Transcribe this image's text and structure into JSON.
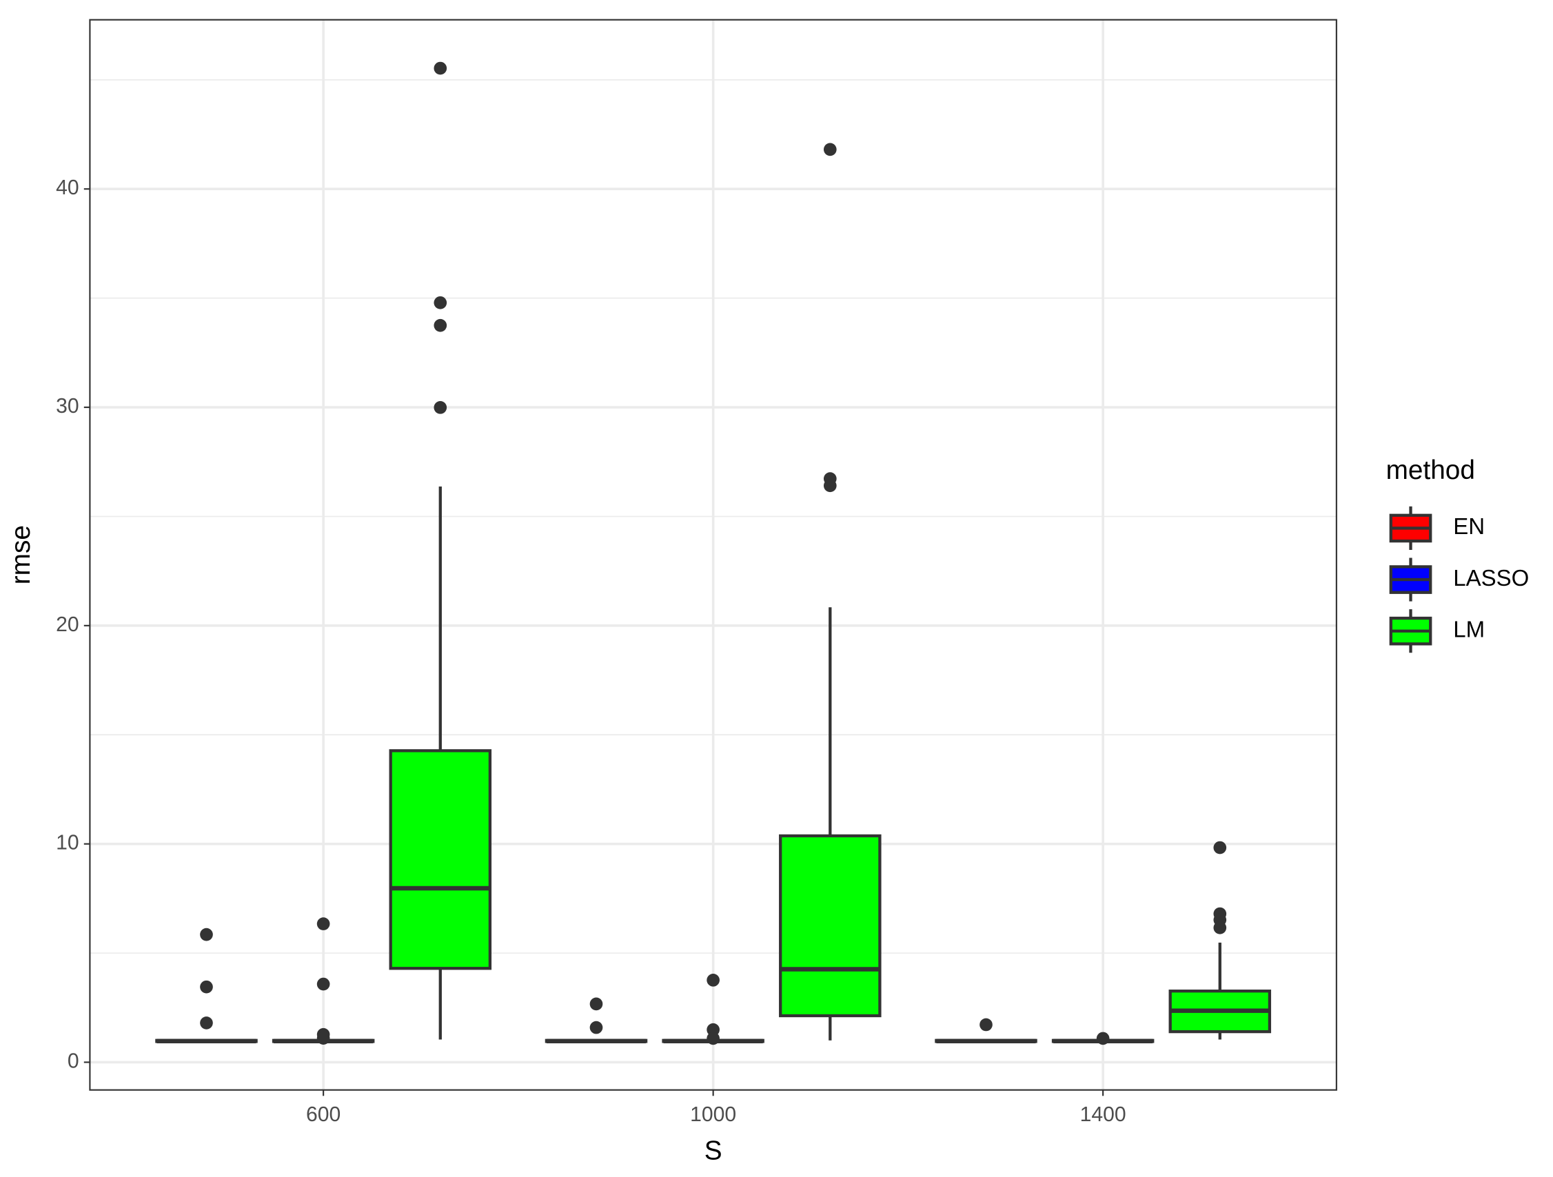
{
  "chart_data": {
    "type": "boxplot",
    "x_label": "S",
    "y_label": "rmse",
    "categories": [
      "600",
      "1000",
      "1400"
    ],
    "ylim": [
      -1.27,
      47.75
    ],
    "yticks": [
      0,
      10,
      20,
      30,
      40
    ],
    "grid": true,
    "minor_grid": true,
    "legend_title": "method",
    "legend": "right",
    "series": [
      {
        "name": "EN",
        "color": "#ff0000",
        "boxes": [
          {
            "low": 0.93,
            "q1": 0.95,
            "median": 0.97,
            "q3": 1.0,
            "high": 1.05,
            "outliers": [
              5.85,
              3.45,
              1.8
            ]
          },
          {
            "low": 0.93,
            "q1": 0.95,
            "median": 0.97,
            "q3": 1.0,
            "high": 1.05,
            "outliers": [
              2.67,
              1.59
            ]
          },
          {
            "low": 0.93,
            "q1": 0.95,
            "median": 0.97,
            "q3": 1.0,
            "high": 1.05,
            "outliers": [
              1.72
            ]
          }
        ]
      },
      {
        "name": "LASSO",
        "color": "#0000ff",
        "boxes": [
          {
            "low": 0.93,
            "q1": 0.95,
            "median": 0.97,
            "q3": 1.0,
            "high": 1.05,
            "outliers": [
              6.34,
              3.58,
              1.27,
              1.1
            ]
          },
          {
            "low": 0.93,
            "q1": 0.95,
            "median": 0.97,
            "q3": 1.0,
            "high": 1.05,
            "outliers": [
              3.76,
              1.49,
              1.09
            ]
          },
          {
            "low": 0.93,
            "q1": 0.95,
            "median": 0.97,
            "q3": 1.0,
            "high": 1.05,
            "outliers": [
              1.09
            ]
          }
        ]
      },
      {
        "name": "LM",
        "color": "#00ff00",
        "boxes": [
          {
            "low": 1.04,
            "q1": 4.3,
            "median": 7.97,
            "q3": 14.27,
            "high": 26.37,
            "outliers": [
              45.53,
              34.79,
              33.75,
              29.99
            ]
          },
          {
            "low": 1.0,
            "q1": 2.13,
            "median": 4.26,
            "q3": 10.37,
            "high": 20.84,
            "outliers": [
              41.81,
              26.73,
              26.41
            ]
          },
          {
            "low": 1.04,
            "q1": 1.4,
            "median": 2.36,
            "q3": 3.26,
            "high": 5.48,
            "outliers": [
              9.83,
              6.8,
              6.52,
              6.16
            ]
          }
        ]
      }
    ]
  }
}
